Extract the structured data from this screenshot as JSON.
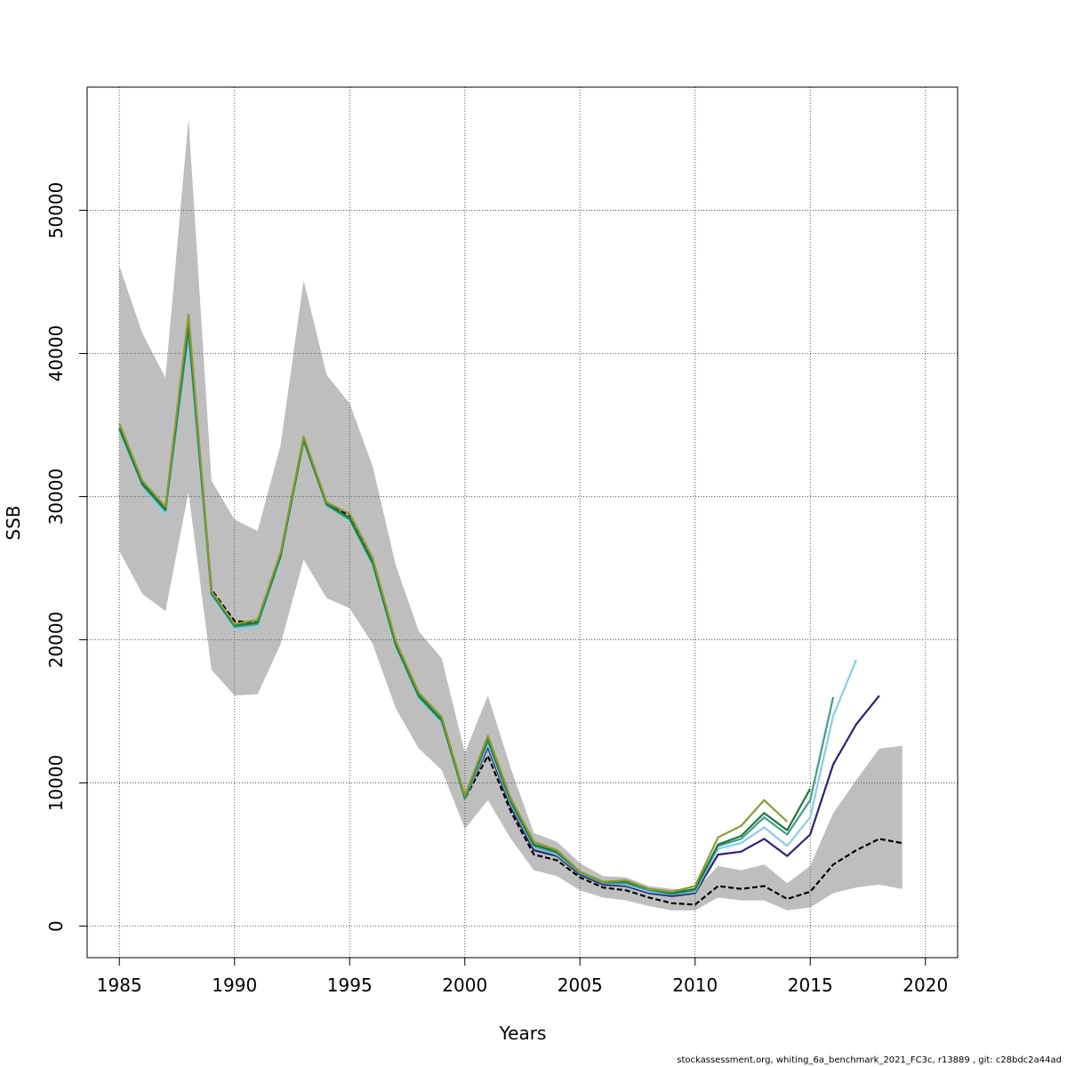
{
  "chart_data": {
    "type": "line",
    "title": "",
    "xlabel": "Years",
    "ylabel": "SSB",
    "xlim": [
      1983.6,
      2021.4
    ],
    "ylim": [
      -2200,
      58600
    ],
    "xticks": [
      1985,
      1990,
      1995,
      2000,
      2005,
      2010,
      2015,
      2020
    ],
    "yticks": [
      0,
      10000,
      20000,
      30000,
      40000,
      50000
    ],
    "grid": true,
    "band": {
      "color": "#bebebe",
      "x": [
        1985,
        1986,
        1987,
        1988,
        1989,
        1990,
        1991,
        1992,
        1993,
        1994,
        1995,
        1996,
        1997,
        1998,
        1999,
        2000,
        2001,
        2002,
        2003,
        2004,
        2005,
        2006,
        2007,
        2008,
        2009,
        2010,
        2011,
        2012,
        2013,
        2014,
        2015,
        2016,
        2017,
        2018,
        2019
      ],
      "lower": [
        26200,
        23200,
        22000,
        30300,
        17900,
        16100,
        16200,
        19700,
        25600,
        22900,
        22200,
        19700,
        15200,
        12400,
        10900,
        6800,
        8800,
        6100,
        3900,
        3500,
        2500,
        2000,
        1800,
        1400,
        1100,
        1100,
        2000,
        1800,
        1800,
        1100,
        1300,
        2300,
        2700,
        2900,
        2600
      ],
      "upper": [
        46100,
        41400,
        38300,
        56400,
        31100,
        28400,
        27600,
        33600,
        45100,
        38500,
        36500,
        32100,
        25200,
        20600,
        18700,
        12100,
        16100,
        11000,
        6500,
        5900,
        4400,
        3500,
        3400,
        2800,
        2600,
        2500,
        4200,
        3900,
        4300,
        3000,
        4200,
        7900,
        10200,
        12400,
        12600
      ]
    },
    "series": [
      {
        "color": "#000000",
        "dashed": true,
        "width": 2.2,
        "x": [
          1985,
          1986,
          1987,
          1988,
          1989,
          1990,
          1991,
          1992,
          1993,
          1994,
          1995,
          1996,
          1997,
          1998,
          1999,
          2000,
          2001,
          2002,
          2003,
          2004,
          2005,
          2006,
          2007,
          2008,
          2009,
          2010,
          2011,
          2012,
          2013,
          2014,
          2015,
          2016,
          2017,
          2018,
          2019
        ],
        "values": [
          34800,
          31000,
          29200,
          41900,
          23500,
          21300,
          21200,
          26000,
          34100,
          29500,
          28700,
          25400,
          19700,
          16000,
          14300,
          8900,
          11900,
          8000,
          5000,
          4600,
          3400,
          2700,
          2500,
          2000,
          1600,
          1500,
          2800,
          2600,
          2800,
          1900,
          2400,
          4300,
          5300,
          6100,
          5800
        ]
      },
      {
        "color": "#2e1f7c",
        "dashed": false,
        "width": 2.2,
        "x": [
          1985,
          1986,
          1987,
          1988,
          1989,
          1990,
          1991,
          1992,
          1993,
          1994,
          1995,
          1996,
          1997,
          1998,
          1999,
          2000,
          2001,
          2002,
          2003,
          2004,
          2005,
          2006,
          2007,
          2008,
          2009,
          2010,
          2011,
          2012,
          2013,
          2014,
          2015,
          2016,
          2017,
          2018
        ],
        "values": [
          34700,
          30900,
          29100,
          41100,
          23200,
          20900,
          21100,
          25900,
          34000,
          29400,
          28400,
          25300,
          19600,
          16000,
          14300,
          8900,
          12500,
          8300,
          5300,
          4900,
          3600,
          2900,
          2800,
          2300,
          2100,
          2300,
          5000,
          5200,
          6100,
          4900,
          6400,
          11300,
          14100,
          16100
        ]
      },
      {
        "color": "#87ceeb",
        "dashed": false,
        "width": 2.2,
        "x": [
          1985,
          1986,
          1987,
          1988,
          1989,
          1990,
          1991,
          1992,
          1993,
          1994,
          1995,
          1996,
          1997,
          1998,
          1999,
          2000,
          2001,
          2002,
          2003,
          2004,
          2005,
          2006,
          2007,
          2008,
          2009,
          2010,
          2011,
          2012,
          2013,
          2014,
          2015,
          2016,
          2017
        ],
        "values": [
          34600,
          30700,
          28800,
          40900,
          23100,
          20800,
          20900,
          25700,
          33900,
          29400,
          28300,
          25200,
          19500,
          15900,
          14200,
          8900,
          12700,
          8500,
          5500,
          5000,
          3700,
          3000,
          2900,
          2400,
          2200,
          2400,
          5400,
          5800,
          6900,
          5600,
          7600,
          14700,
          18600
        ]
      },
      {
        "color": "#3ca08a",
        "dashed": false,
        "width": 2.2,
        "x": [
          1985,
          1986,
          1987,
          1988,
          1989,
          1990,
          1991,
          1992,
          1993,
          1994,
          1995,
          1996,
          1997,
          1998,
          1999,
          2000,
          2001,
          2002,
          2003,
          2004,
          2005,
          2006,
          2007,
          2008,
          2009,
          2010,
          2011,
          2012,
          2013,
          2014,
          2015,
          2016
        ],
        "values": [
          34700,
          30800,
          29000,
          41500,
          23200,
          20900,
          21100,
          25800,
          33900,
          29400,
          28400,
          25300,
          19600,
          16000,
          14300,
          8900,
          12900,
          8600,
          5600,
          5100,
          3700,
          3000,
          3000,
          2500,
          2200,
          2500,
          5600,
          6100,
          7600,
          6400,
          8800,
          16000
        ]
      },
      {
        "color": "#1b7a3a",
        "dashed": false,
        "width": 2.2,
        "x": [
          1985,
          1986,
          1987,
          1988,
          1989,
          1990,
          1991,
          1992,
          1993,
          1994,
          1995,
          1996,
          1997,
          1998,
          1999,
          2000,
          2001,
          2002,
          2003,
          2004,
          2005,
          2006,
          2007,
          2008,
          2009,
          2010,
          2011,
          2012,
          2013,
          2014,
          2015
        ],
        "values": [
          34800,
          30900,
          29100,
          42000,
          23300,
          21000,
          21200,
          25900,
          34000,
          29500,
          28500,
          25400,
          19700,
          16100,
          14400,
          9000,
          13100,
          8700,
          5700,
          5200,
          3800,
          3100,
          3100,
          2600,
          2300,
          2600,
          5700,
          6300,
          7900,
          6700,
          9600
        ]
      },
      {
        "color": "#8f9a2e",
        "dashed": false,
        "width": 2.2,
        "x": [
          1985,
          1986,
          1987,
          1988,
          1989,
          1990,
          1991,
          1992,
          1993,
          1994,
          1995,
          1996,
          1997,
          1998,
          1999,
          2000,
          2001,
          2002,
          2003,
          2004,
          2005,
          2006,
          2007,
          2008,
          2009,
          2010,
          2011,
          2012,
          2013,
          2014
        ],
        "values": [
          35100,
          31100,
          29300,
          42700,
          23400,
          21100,
          21400,
          26100,
          34200,
          29600,
          28800,
          25700,
          19900,
          16300,
          14600,
          9100,
          13300,
          8900,
          5900,
          5300,
          3800,
          3100,
          3200,
          2600,
          2400,
          2800,
          6200,
          7000,
          8800,
          7300
        ]
      }
    ]
  },
  "footer": "stockassessment.org, whiting_6a_benchmark_2021_FC3c, r13889 , git: c28bdc2a44ad"
}
